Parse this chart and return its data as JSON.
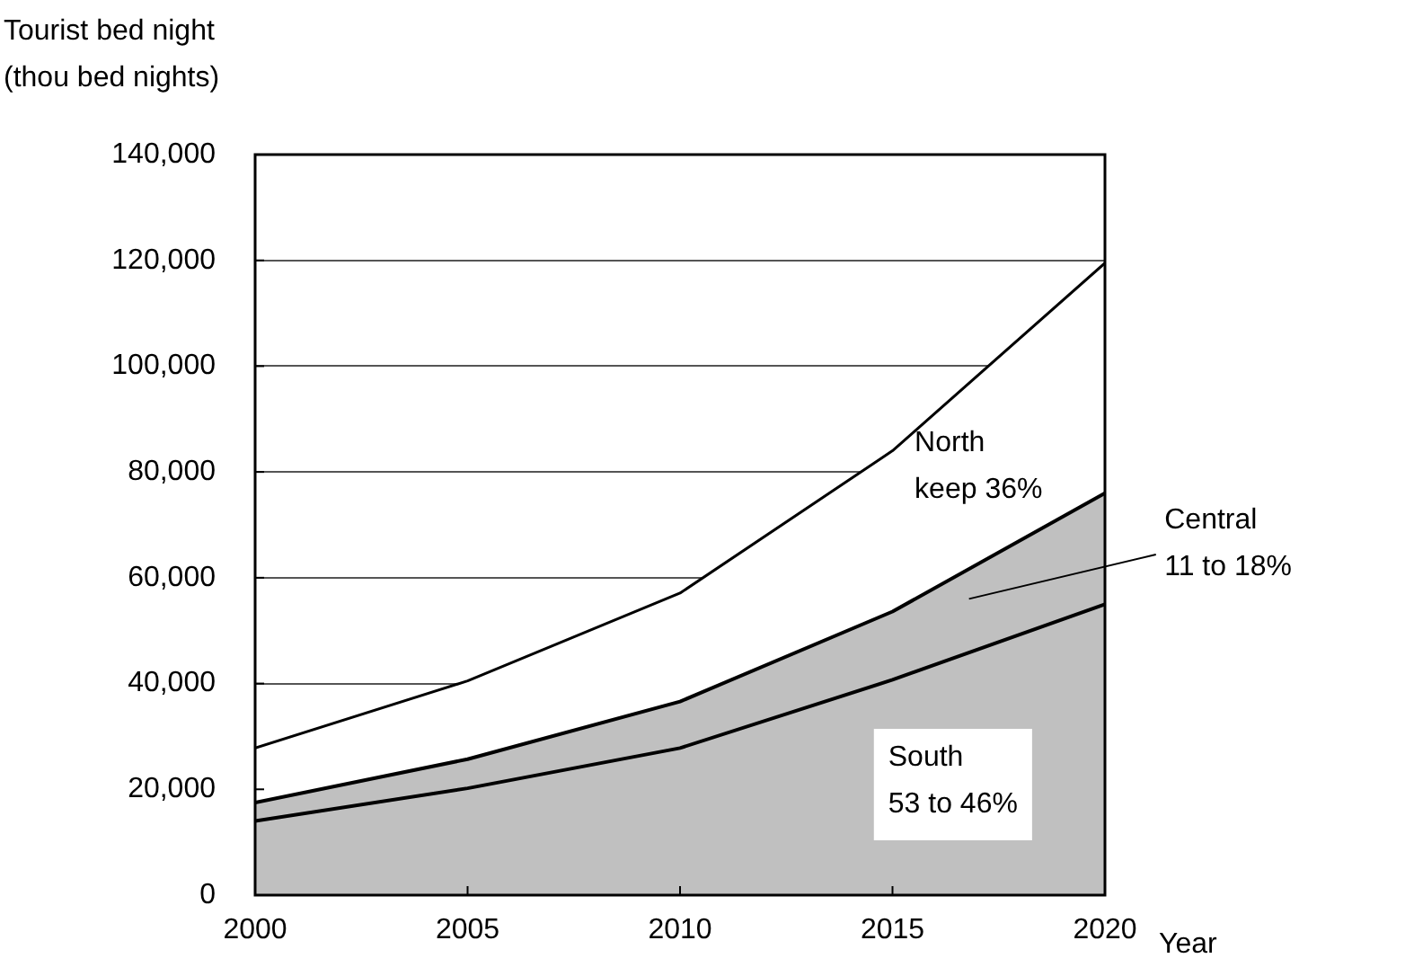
{
  "chart_data": {
    "type": "area",
    "stacked": true,
    "ylabel": "Tourist bed night\n(thou bed nights)",
    "xlabel": "Year",
    "x": [
      2000,
      2005,
      2010,
      2015,
      2020
    ],
    "series": [
      {
        "color": "#c0c0c0",
        "values": [
          14000,
          20200,
          27800,
          40700,
          55000
        ]
      },
      {
        "color": "#c0c0c0",
        "values": [
          3500,
          5500,
          8800,
          12900,
          21000
        ]
      },
      {
        "color": "#ffffff",
        "values": [
          10300,
          14800,
          20500,
          30400,
          43500
        ]
      }
    ],
    "xlim": [
      2000,
      2020
    ],
    "xticks": [
      2000,
      2005,
      2010,
      2015,
      2020
    ],
    "ylim": [
      0,
      140000
    ],
    "yticks": [
      0,
      {
        "value": 20000,
        "label": "20,000"
      },
      {
        "value": 40000,
        "label": "40,000"
      },
      {
        "value": 60000,
        "label": "60,000"
      },
      {
        "value": 80000,
        "label": "80,000"
      },
      {
        "value": 100000,
        "label": "100,000"
      },
      {
        "value": 120000,
        "label": "120,000"
      },
      {
        "value": 140000,
        "label": "140,000"
      }
    ],
    "grid": "y",
    "annotations": [
      "North\nkeep 36%",
      "Central\n11 to 18%",
      "South\n53 to 46%"
    ]
  }
}
